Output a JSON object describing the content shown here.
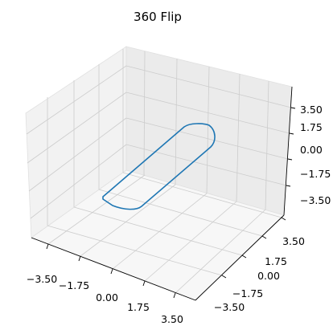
{
  "chart_data": {
    "type": "line3d",
    "title": "360 Flip",
    "xlabel": "",
    "ylabel": "",
    "zlabel": "",
    "xlim": [
      -4.6,
      4.6
    ],
    "ylim": [
      -4.6,
      4.6
    ],
    "zlim": [
      -4.6,
      4.6
    ],
    "x_ticks": [
      "−3.50",
      "−1.75",
      "0.00",
      "1.75",
      "3.50"
    ],
    "y_ticks": [
      "−3.50",
      "−1.75",
      "0.00",
      "1.75",
      "3.50"
    ],
    "z_ticks": [
      "−3.50",
      "−1.75",
      "0.00",
      "1.75",
      "3.50"
    ],
    "grid": true,
    "series": [
      {
        "name": "",
        "color": "#1f77b4",
        "shape": "rounded rectangle loop (skateboard outline), x from −3 to 3, y from −1 to 1, z ≈ 0"
      }
    ]
  },
  "colors": {
    "pane_left": "#f2f2f2",
    "pane_right": "#ebebeb",
    "pane_floor": "#f7f7f7",
    "grid": "#cccccc",
    "line": "#1f77b4"
  }
}
